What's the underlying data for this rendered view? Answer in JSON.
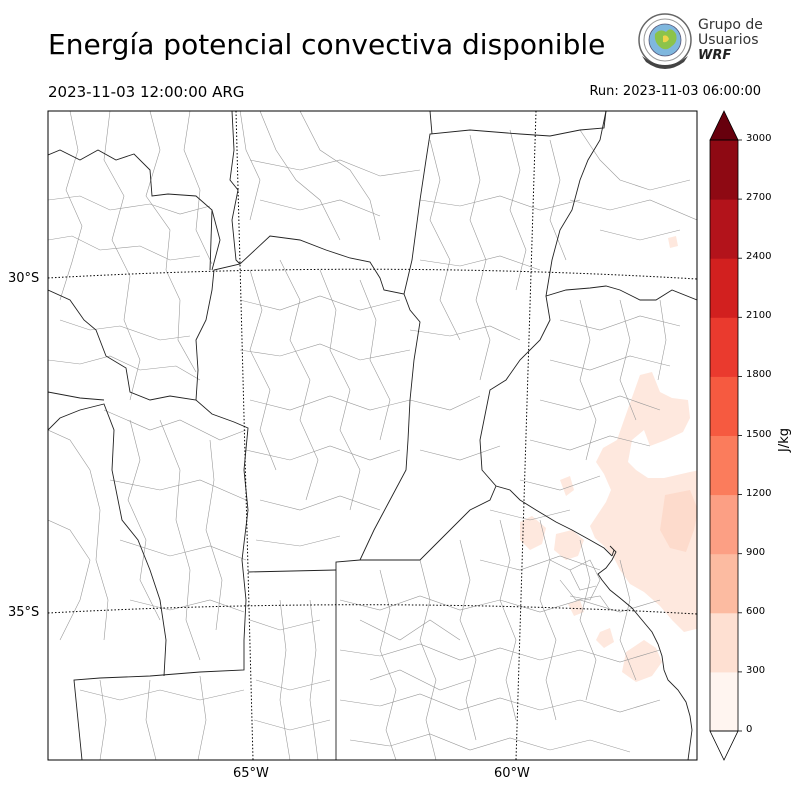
{
  "header": {
    "title": "Energía potencial convectiva disponible",
    "valid_time": "2023-11-03 12:00:00 ARG",
    "run_time": "Run: 2023-11-03 06:00:00"
  },
  "logo": {
    "line1": "Grupo de",
    "line2": "Usuarios",
    "line3": "WRF",
    "icon": "globe-seal-icon"
  },
  "map": {
    "parallels": [
      {
        "label": "30°S",
        "value": -30
      },
      {
        "label": "35°S",
        "value": -35
      }
    ],
    "meridians": [
      {
        "label": "65°W",
        "value": -65
      },
      {
        "label": "60°W",
        "value": -60
      }
    ],
    "field_color_low": "#fee8de",
    "field_color_mid": "#fdd3c0"
  },
  "colorbar": {
    "unit": "J/kg",
    "ticks": [
      "0",
      "300",
      "600",
      "900",
      "1200",
      "1500",
      "1800",
      "2100",
      "2400",
      "2700",
      "3000"
    ],
    "colors": [
      "#fff5f0",
      "#fee0d2",
      "#fcbba1",
      "#fc9f84",
      "#fb7c5c",
      "#f65a40",
      "#ea3a2e",
      "#d2201f",
      "#b3131b",
      "#8e0913"
    ],
    "extend_over_color": "#67000d",
    "extend_under_color": "#ffffff"
  }
}
